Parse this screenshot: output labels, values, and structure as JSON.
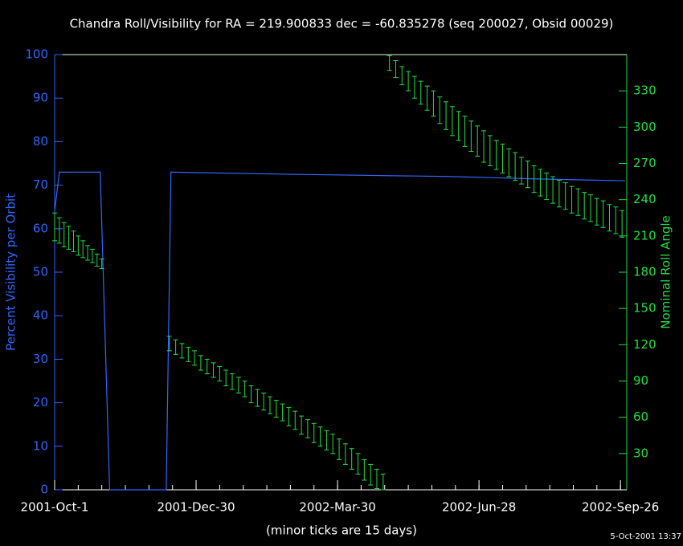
{
  "chart_data": {
    "type": "line",
    "title": "Chandra Roll/Visibility for RA = 219.900833 dec = -60.835278 (seq 200027, Obsid 00029)",
    "ylabel": "Percent Visibility per Orbit",
    "y2label": "Nominal Roll Angle",
    "xlabel": "(minor ticks are 15 days)",
    "timestamp": "5-Oct-2001 13:37",
    "xlim": [
      0,
      364
    ],
    "xticks": [
      {
        "value": 0,
        "label": "2001-Oct-1"
      },
      {
        "value": 90,
        "label": "2001-Dec-30"
      },
      {
        "value": 180,
        "label": "2002-Mar-30"
      },
      {
        "value": 270,
        "label": "2002-Jun-28"
      },
      {
        "value": 360,
        "label": "2002-Sep-26"
      }
    ],
    "xminorticks": [
      15,
      30,
      45,
      60,
      75,
      90,
      105,
      120,
      135,
      150,
      165,
      180,
      195,
      210,
      225,
      240,
      255,
      270,
      285,
      300,
      315,
      330,
      345,
      360
    ],
    "ylim": [
      0,
      100
    ],
    "yticks": [
      0,
      10,
      20,
      30,
      40,
      50,
      60,
      70,
      80,
      90,
      100
    ],
    "y2lim": [
      0,
      360
    ],
    "y2ticks": [
      30,
      60,
      90,
      120,
      150,
      180,
      210,
      240,
      270,
      300,
      330
    ],
    "series": [
      {
        "color": "#3366ff",
        "x": [
          0,
          3,
          29,
          35,
          71,
          74,
          150,
          250,
          300,
          363
        ],
        "values": [
          64,
          73,
          73,
          0,
          0,
          73,
          72.5,
          72,
          71.5,
          71
        ]
      },
      {
        "color": "#22dd44",
        "axis": "y2",
        "kind": "errorbar",
        "x": [
          0,
          3,
          6,
          9,
          12,
          15,
          18,
          21,
          24,
          27,
          30,
          73,
          77,
          81,
          85,
          89,
          93,
          97,
          101,
          105,
          109,
          113,
          117,
          121,
          125,
          129,
          133,
          137,
          141,
          145,
          149,
          153,
          157,
          161,
          165,
          169,
          173,
          177,
          181,
          185,
          189,
          193,
          197,
          201,
          205,
          209,
          213,
          217,
          221,
          225,
          229,
          233,
          237,
          241,
          245,
          249,
          253,
          257,
          261,
          265,
          269,
          273,
          277,
          281,
          285,
          289,
          293,
          297,
          301,
          305,
          309,
          313,
          317,
          321,
          325,
          329,
          333,
          337,
          341,
          345,
          349,
          353,
          357,
          361
        ],
        "high": [
          229,
          225,
          221,
          218,
          214,
          210,
          206,
          202,
          199,
          195,
          191,
          127,
          124,
          121,
          118,
          115,
          111,
          108,
          105,
          102,
          99,
          96,
          93,
          90,
          86,
          83,
          80,
          77,
          74,
          71,
          68,
          65,
          61,
          58,
          55,
          52,
          49,
          46,
          42,
          38,
          34,
          30,
          25,
          21,
          17,
          13,
          359,
          355,
          350,
          346,
          342,
          338,
          334,
          330,
          325,
          321,
          317,
          313,
          309,
          305,
          301,
          297,
          293,
          289,
          286,
          282,
          279,
          275,
          272,
          268,
          265,
          262,
          259,
          256,
          254,
          251,
          249,
          246,
          244,
          241,
          239,
          236,
          234,
          231
        ],
        "low": [
          206,
          204,
          201,
          199,
          197,
          194,
          192,
          190,
          188,
          185,
          183,
          115,
          112,
          109,
          106,
          103,
          99,
          96,
          93,
          90,
          86,
          83,
          80,
          77,
          72,
          69,
          66,
          63,
          60,
          57,
          53,
          50,
          46,
          43,
          39,
          36,
          33,
          30,
          25,
          21,
          17,
          13,
          8,
          4,
          1,
          0,
          347,
          341,
          335,
          330,
          324,
          319,
          314,
          309,
          303,
          298,
          293,
          289,
          284,
          280,
          276,
          271,
          268,
          265,
          262,
          259,
          256,
          253,
          250,
          246,
          243,
          240,
          237,
          234,
          232,
          229,
          227,
          224,
          222,
          219,
          217,
          214,
          212,
          209
        ]
      }
    ]
  }
}
